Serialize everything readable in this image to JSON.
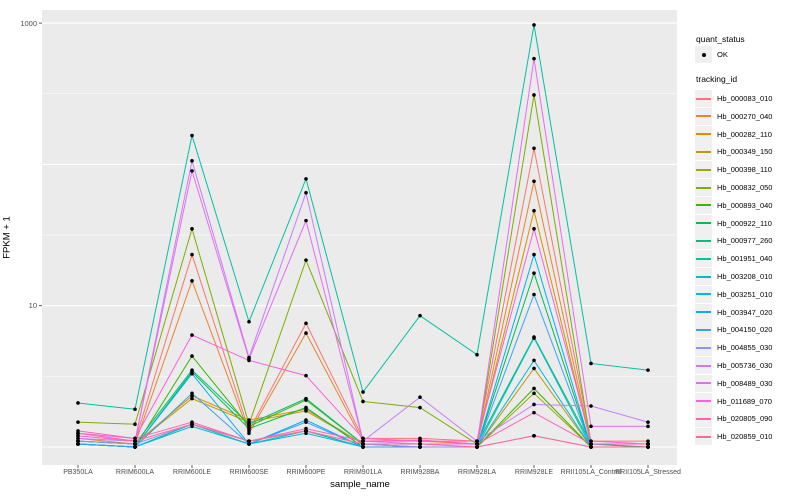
{
  "chart_data": {
    "type": "line",
    "title": "",
    "xlabel": "sample_name",
    "ylabel": "FPKM + 1",
    "y_scale": "log10",
    "ylim": [
      0.75,
      1250
    ],
    "y_tick_labels": [
      "1000",
      "10"
    ],
    "y_tick_values": [
      1000,
      10
    ],
    "y_major_gridlines": [
      1,
      10,
      100,
      1000
    ],
    "y_minor_gridlines": [
      3.1623,
      31.623,
      316.23
    ],
    "grid": true,
    "legend_position": "right",
    "panel_color": "#EBEBEB",
    "gridline_color": "#FFFFFF",
    "point_color": "#000000",
    "categories": [
      "PB350LA",
      "RRIM600LA",
      "RRIM600LE",
      "RRIM600SE",
      "RRIM600PE",
      "RRIM901LA",
      "RRIM928BA",
      "RRIM928LA",
      "RRIM928LE",
      "RRII105LA_Control",
      "RRII105LA_Stressed"
    ],
    "series": [
      {
        "name": "Hb_000083_010",
        "color": "#F8766D",
        "values": [
          1.2,
          1.1,
          23,
          1.3,
          7.5,
          1.15,
          1.15,
          1.1,
          130,
          1.1,
          1.1
        ]
      },
      {
        "name": "Hb_000270_040",
        "color": "#EA8331",
        "values": [
          1.15,
          1.05,
          15,
          1.25,
          6.4,
          1.1,
          1.1,
          1.05,
          76,
          1.05,
          1.05
        ]
      },
      {
        "name": "Hb_000282_110",
        "color": "#D89000",
        "values": [
          1.1,
          1.05,
          2.3,
          1.55,
          1.85,
          1.05,
          1.05,
          1.05,
          47,
          1.05,
          1.0
        ]
      },
      {
        "name": "Hb_000349_150",
        "color": "#C09B00",
        "values": [
          1.1,
          1.05,
          2.2,
          1.5,
          1.8,
          1.05,
          1.0,
          1.0,
          3.6,
          1.0,
          1.0
        ]
      },
      {
        "name": "Hb_000398_110",
        "color": "#A3A500",
        "values": [
          1.05,
          1.0,
          1.45,
          1.1,
          1.3,
          1.0,
          1.0,
          1.0,
          2.4,
          1.0,
          1.0
        ]
      },
      {
        "name": "Hb_000832_050",
        "color": "#7CAE00",
        "values": [
          1.5,
          1.45,
          35,
          1.45,
          21,
          2.1,
          1.9,
          1.05,
          310,
          1.05,
          1.05
        ]
      },
      {
        "name": "Hb_000893_040",
        "color": "#39B600",
        "values": [
          1.05,
          1.0,
          4.4,
          1.4,
          2.15,
          1.05,
          1.0,
          1.0,
          2.6,
          1.0,
          1.0
        ]
      },
      {
        "name": "Hb_000922_110",
        "color": "#00BB4E",
        "values": [
          1.05,
          1.0,
          3.4,
          1.35,
          1.9,
          1.0,
          1.0,
          1.0,
          17,
          1.0,
          1.0
        ]
      },
      {
        "name": "Hb_000977_260",
        "color": "#00BF7D",
        "values": [
          1.1,
          1.05,
          3.5,
          1.45,
          2.2,
          1.05,
          1.05,
          1.05,
          6.0,
          1.05,
          1.0
        ]
      },
      {
        "name": "Hb_001951_040",
        "color": "#00C1A3",
        "values": [
          2.05,
          1.85,
          160,
          7.7,
          79,
          2.45,
          8.5,
          4.5,
          970,
          3.9,
          3.5
        ]
      },
      {
        "name": "Hb_003208_010",
        "color": "#00BFC4",
        "values": [
          1.05,
          1.0,
          1.45,
          1.05,
          1.3,
          1.0,
          1.0,
          1.0,
          5.9,
          1.0,
          1.0
        ]
      },
      {
        "name": "Hb_003251_010",
        "color": "#00BADE",
        "values": [
          1.05,
          1.0,
          1.4,
          1.05,
          1.25,
          1.0,
          1.0,
          1.0,
          4.1,
          1.0,
          1.0
        ]
      },
      {
        "name": "Hb_003947_020",
        "color": "#00B0F6",
        "values": [
          1.05,
          1.0,
          3.3,
          1.05,
          1.55,
          1.0,
          1.0,
          1.0,
          23,
          1.0,
          1.0
        ]
      },
      {
        "name": "Hb_004150_020",
        "color": "#35A2FF",
        "values": [
          1.05,
          1.0,
          2.4,
          1.05,
          1.5,
          1.0,
          1.0,
          1.0,
          12,
          1.0,
          1.0
        ]
      },
      {
        "name": "Hb_004855_030",
        "color": "#9590FF",
        "values": [
          1.1,
          1.05,
          1.45,
          1.1,
          1.3,
          1.05,
          1.0,
          1.0,
          1.2,
          1.0,
          1.0
        ]
      },
      {
        "name": "Hb_005736_030",
        "color": "#C77CFF",
        "values": [
          1.15,
          1.1,
          106,
          4.3,
          63,
          1.1,
          2.25,
          1.1,
          2.0,
          1.95,
          1.5
        ]
      },
      {
        "name": "Hb_008489_030",
        "color": "#E76BF3",
        "values": [
          1.2,
          1.1,
          90,
          4.2,
          40,
          1.1,
          1.05,
          1.05,
          560,
          1.4,
          1.4
        ]
      },
      {
        "name": "Hb_011689_070",
        "color": "#FA62DB",
        "values": [
          1.25,
          1.15,
          6.2,
          4.1,
          3.2,
          1.15,
          1.1,
          1.1,
          35,
          1.1,
          1.05
        ]
      },
      {
        "name": "Hb_020805_090",
        "color": "#FF62BC",
        "values": [
          1.3,
          1.15,
          1.5,
          1.1,
          1.35,
          1.1,
          1.12,
          1.05,
          1.75,
          1.05,
          1.05
        ]
      },
      {
        "name": "Hb_020859_010",
        "color": "#FF6A98",
        "values": [
          1.25,
          1.1,
          1.45,
          1.1,
          1.3,
          1.05,
          1.05,
          1.0,
          1.2,
          1.0,
          1.0
        ]
      }
    ],
    "legend": {
      "quant_status": {
        "title": "quant_status",
        "items": [
          "OK"
        ]
      },
      "tracking_id": {
        "title": "tracking_id"
      }
    }
  }
}
